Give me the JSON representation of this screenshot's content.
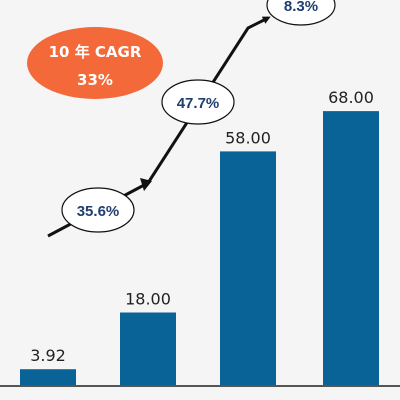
{
  "chart_data": {
    "type": "bar",
    "categories": [
      "",
      "",
      "",
      ""
    ],
    "values": [
      3.92,
      18.0,
      58.0,
      68.0
    ],
    "value_labels": [
      "3.92",
      "18.00",
      "58.00",
      "68.00"
    ],
    "ylim": [
      0,
      72
    ],
    "title": "",
    "xlabel": "",
    "ylabel": "",
    "grid": false,
    "cagr_badge": {
      "line1": "10 年 CAGR",
      "line2": "33%"
    },
    "growth_labels": [
      "35.6%",
      "47.7%",
      "8.3%"
    ],
    "colors": {
      "bar": "#0a6396",
      "badge": "#f4693a",
      "badge_text": "#ffffff",
      "growth_text": "#1f3d6e",
      "arrow": "#111111",
      "value_text": "#222222",
      "background": "#f5f5f5"
    }
  }
}
